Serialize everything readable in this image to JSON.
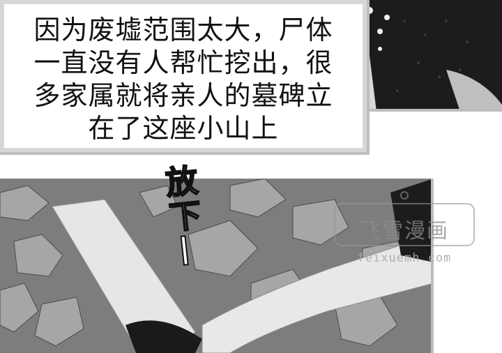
{
  "caption": {
    "lines": [
      "因为废墟范围太大，尸体",
      "一直没有人帮忙挖出，很",
      "多家属就将亲人的墓碑立",
      "在了这座小山上"
    ]
  },
  "sound_effect": "放下—",
  "watermark": {
    "title": "飞雪漫画",
    "url": "feixuemh.com"
  }
}
